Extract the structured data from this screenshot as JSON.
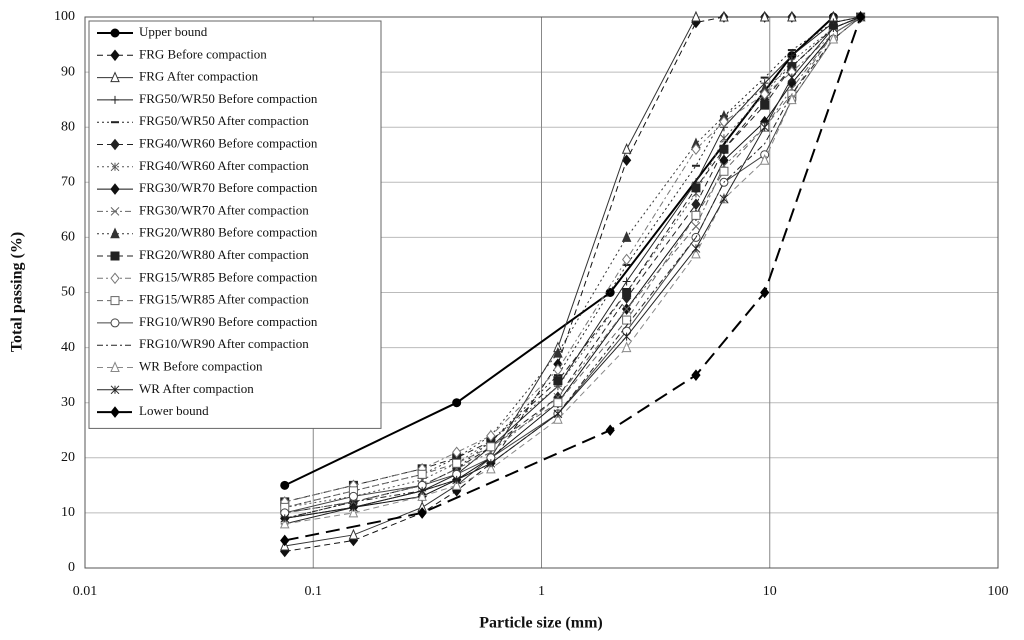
{
  "chart_data": {
    "type": "line",
    "x_label": "Particle size (mm)",
    "y_label": "Total passing (%)",
    "x_scale": "log",
    "xlim": [
      0.01,
      100
    ],
    "xticks": [
      0.01,
      0.1,
      1,
      10,
      100
    ],
    "ylim": [
      0,
      100
    ],
    "yticks": [
      0,
      10,
      20,
      30,
      40,
      50,
      60,
      70,
      80,
      90,
      100
    ],
    "grid": true,
    "legend": "upper left",
    "series": [
      {
        "name": "Upper bound",
        "color": "#000000",
        "marker": "circle",
        "dash": "solid",
        "width": 2,
        "x": [
          0.075,
          0.425,
          2,
          12.5,
          19
        ],
        "values": [
          15,
          30,
          50,
          93,
          100
        ]
      },
      {
        "name": "FRG Before compaction",
        "color": "#111111",
        "marker": "diamond",
        "dash": "dash",
        "width": 1,
        "x": [
          0.075,
          0.15,
          0.3,
          0.425,
          0.6,
          1.18,
          2.36,
          4.75,
          6.3,
          9.5,
          12.5,
          19,
          25
        ],
        "values": [
          3,
          5,
          10,
          14,
          19,
          37,
          74,
          99,
          100,
          100,
          100,
          100,
          100
        ]
      },
      {
        "name": "FRG After compaction",
        "color": "#333333",
        "marker": "open-triangle",
        "dash": "solid",
        "width": 1,
        "x": [
          0.075,
          0.15,
          0.3,
          0.425,
          0.6,
          1.18,
          2.36,
          4.75,
          6.3,
          9.5,
          12.5,
          19,
          25
        ],
        "values": [
          4,
          6,
          11,
          15,
          20,
          40,
          76,
          100,
          100,
          100,
          100,
          100,
          100
        ]
      },
      {
        "name": "FRG50/WR50 Before compaction",
        "color": "#222222",
        "marker": "plus",
        "dash": "solid",
        "width": 1,
        "x": [
          0.075,
          0.15,
          0.3,
          0.425,
          0.6,
          1.18,
          2.36,
          4.75,
          6.3,
          9.5,
          12.5,
          19,
          25
        ],
        "values": [
          8,
          11,
          14,
          17,
          22,
          33,
          52,
          70,
          80,
          88,
          93,
          99,
          100
        ]
      },
      {
        "name": "FRG50/WR50 After compaction",
        "color": "#222222",
        "marker": "dash",
        "dash": "dot",
        "width": 1,
        "x": [
          0.075,
          0.15,
          0.3,
          0.425,
          0.6,
          1.18,
          2.36,
          4.75,
          6.3,
          9.5,
          12.5,
          19,
          25
        ],
        "values": [
          9,
          12,
          15,
          18,
          23,
          35,
          55,
          73,
          82,
          89,
          94,
          99,
          100
        ]
      },
      {
        "name": "FRG40/WR60 Before compaction",
        "color": "#222222",
        "marker": "diamond",
        "dash": "dash",
        "width": 1,
        "x": [
          0.075,
          0.15,
          0.3,
          0.425,
          0.6,
          1.18,
          2.36,
          4.75,
          6.3,
          9.5,
          12.5,
          19,
          25
        ],
        "values": [
          10,
          12,
          15,
          18,
          22,
          31,
          49,
          66,
          76,
          85,
          91,
          98,
          100
        ]
      },
      {
        "name": "FRG40/WR60 After compaction",
        "color": "#555555",
        "marker": "star",
        "dash": "dot",
        "width": 1,
        "x": [
          0.075,
          0.15,
          0.3,
          0.425,
          0.6,
          1.18,
          2.36,
          4.75,
          6.3,
          9.5,
          12.5,
          19,
          25
        ],
        "values": [
          11,
          13,
          16,
          19,
          23,
          33,
          50,
          68,
          78,
          86,
          92,
          98,
          100
        ]
      },
      {
        "name": "FRG30/WR70 Before compaction",
        "color": "#111111",
        "marker": "diamond",
        "dash": "solid",
        "width": 1,
        "x": [
          0.075,
          0.15,
          0.3,
          0.425,
          0.6,
          1.18,
          2.36,
          4.75,
          6.3,
          9.5,
          12.5,
          19,
          25
        ],
        "values": [
          9,
          11,
          13,
          16,
          20,
          30,
          47,
          64,
          74,
          81,
          88,
          97,
          100
        ]
      },
      {
        "name": "FRG30/WR70 After compaction",
        "color": "#666666",
        "marker": "x",
        "dash": "dashdot",
        "width": 1,
        "x": [
          0.075,
          0.15,
          0.3,
          0.425,
          0.6,
          1.18,
          2.36,
          4.75,
          6.3,
          9.5,
          12.5,
          19,
          25
        ],
        "values": [
          10,
          12,
          15,
          18,
          21,
          31,
          47,
          62,
          73,
          80,
          87,
          97,
          100
        ]
      },
      {
        "name": "FRG20/WR80 Before compaction",
        "color": "#333333",
        "marker": "triangle",
        "dash": "dot",
        "width": 1,
        "x": [
          0.075,
          0.15,
          0.3,
          0.425,
          0.6,
          1.18,
          2.36,
          4.75,
          6.3,
          9.5,
          12.5,
          19,
          25
        ],
        "values": [
          11,
          14,
          17,
          20,
          24,
          39,
          60,
          77,
          82,
          87,
          91,
          98,
          100
        ]
      },
      {
        "name": "FRG20/WR80 After compaction",
        "color": "#222222",
        "marker": "square",
        "dash": "dash",
        "width": 1,
        "x": [
          0.075,
          0.15,
          0.3,
          0.425,
          0.6,
          1.18,
          2.36,
          4.75,
          6.3,
          9.5,
          12.5,
          19,
          25
        ],
        "values": [
          12,
          15,
          18,
          20,
          23,
          34,
          50,
          69,
          76,
          84,
          91,
          98,
          100
        ]
      },
      {
        "name": "FRG15/WR85 Before compaction",
        "color": "#777777",
        "marker": "open-diamond",
        "dash": "dashdot",
        "width": 1,
        "x": [
          0.075,
          0.15,
          0.3,
          0.425,
          0.6,
          1.18,
          2.36,
          4.75,
          6.3,
          9.5,
          12.5,
          19,
          25
        ],
        "values": [
          12,
          15,
          18,
          21,
          24,
          36,
          56,
          76,
          81,
          86,
          90,
          97,
          100
        ]
      },
      {
        "name": "FRG15/WR85 After compaction",
        "color": "#666666",
        "marker": "open-square",
        "dash": "dash",
        "width": 1,
        "x": [
          0.075,
          0.15,
          0.3,
          0.425,
          0.6,
          1.18,
          2.36,
          4.75,
          6.3,
          9.5,
          12.5,
          19,
          25
        ],
        "values": [
          11,
          14,
          17,
          19,
          22,
          30,
          45,
          64,
          72,
          80,
          86,
          97,
          100
        ]
      },
      {
        "name": "FRG10/WR90 Before compaction",
        "color": "#444444",
        "marker": "open-circle",
        "dash": "solid",
        "width": 1,
        "x": [
          0.075,
          0.15,
          0.3,
          0.425,
          0.6,
          1.18,
          2.36,
          4.75,
          6.3,
          9.5,
          12.5,
          19,
          25
        ],
        "values": [
          10,
          13,
          15,
          17,
          20,
          28,
          43,
          60,
          70,
          75,
          85,
          96,
          100
        ]
      },
      {
        "name": "FRG10/WR90 After compaction",
        "color": "#222222",
        "marker": "none",
        "dash": "dashdot",
        "width": 1,
        "x": [
          0.075,
          0.15,
          0.3,
          0.425,
          0.6,
          1.18,
          2.36,
          4.75,
          6.3,
          9.5,
          12.5,
          19,
          25
        ],
        "values": [
          9,
          12,
          14,
          16,
          19,
          28,
          44,
          60,
          70,
          77,
          86,
          96,
          100
        ]
      },
      {
        "name": "WR Before compaction",
        "color": "#888888",
        "marker": "open-triangle",
        "dash": "dash",
        "width": 1,
        "x": [
          0.075,
          0.15,
          0.3,
          0.425,
          0.6,
          1.18,
          2.36,
          4.75,
          6.3,
          9.5,
          12.5,
          19,
          25
        ],
        "values": [
          8,
          10,
          13,
          15,
          18,
          27,
          40,
          57,
          67,
          74,
          85,
          96,
          100
        ]
      },
      {
        "name": "WR After compaction",
        "color": "#222222",
        "marker": "star",
        "dash": "solid",
        "width": 1,
        "x": [
          0.075,
          0.15,
          0.3,
          0.425,
          0.6,
          1.18,
          2.36,
          4.75,
          6.3,
          9.5,
          12.5,
          19,
          25
        ],
        "values": [
          9,
          11,
          14,
          16,
          19,
          28,
          42,
          58,
          67,
          80,
          89,
          98,
          100
        ]
      },
      {
        "name": "Lower bound",
        "color": "#000000",
        "marker": "diamond",
        "dash": "longdash",
        "width": 2,
        "x": [
          0.075,
          0.3,
          2,
          4.75,
          9.5,
          25
        ],
        "values": [
          5,
          10,
          25,
          35,
          50,
          100
        ]
      }
    ]
  }
}
